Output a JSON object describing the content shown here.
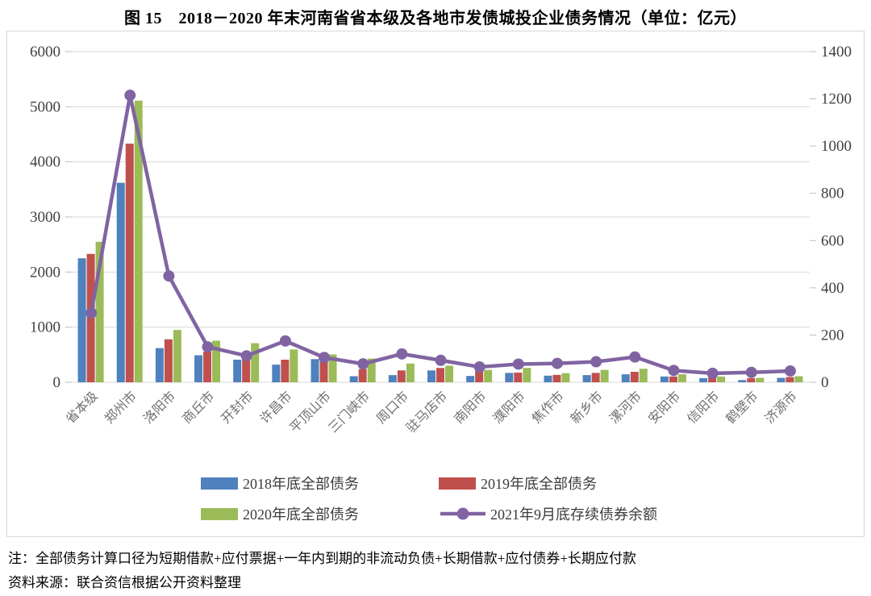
{
  "title": "图 15　2018－2020 年末河南省省本级及各地市发债城投企业债务情况（单位：亿元）",
  "notes": {
    "note": "注：全部债务计算口径为短期借款+应付票据+一年内到期的非流动负债+长期借款+应付债券+长期应付款",
    "source": "资料来源：联合资信根据公开资料整理"
  },
  "colors": {
    "bar_2018": "#4E81BD",
    "bar_2019": "#C0504D",
    "bar_2020": "#9BBB59",
    "line_2021": "#8064A2",
    "gridline": "#D9D9D9",
    "tick_mark": "#BFBFBF",
    "axis_text": "#404040",
    "category_text": "#707070"
  },
  "chart_data": {
    "type": "bar",
    "subtype": "grouped bars with overlay line on secondary axis",
    "categories": [
      "省本级",
      "郑州市",
      "洛阳市",
      "商丘市",
      "开封市",
      "许昌市",
      "平顶山市",
      "三门峡市",
      "周口市",
      "驻马店市",
      "南阳市",
      "濮阳市",
      "焦作市",
      "新乡市",
      "漯河市",
      "安阳市",
      "信阳市",
      "鹤壁市",
      "济源市"
    ],
    "series": [
      {
        "name": "2018年底全部债务",
        "type": "bar",
        "axis": "left",
        "values": [
          2250,
          3620,
          620,
          490,
          410,
          320,
          420,
          110,
          130,
          215,
          115,
          170,
          120,
          130,
          145,
          105,
          75,
          40,
          80
        ]
      },
      {
        "name": "2019年底全部债务",
        "type": "bar",
        "axis": "left",
        "values": [
          2330,
          4330,
          780,
          555,
          430,
          410,
          395,
          240,
          215,
          260,
          210,
          175,
          135,
          170,
          190,
          105,
          95,
          75,
          95
        ]
      },
      {
        "name": "2020年底全部债务",
        "type": "bar",
        "axis": "left",
        "values": [
          2550,
          5110,
          950,
          755,
          710,
          595,
          505,
          430,
          340,
          300,
          225,
          260,
          165,
          225,
          245,
          145,
          105,
          80,
          110
        ]
      },
      {
        "name": "2021年9月底存续债券余额",
        "type": "line",
        "axis": "right",
        "values": [
          293,
          1215,
          450,
          150,
          112,
          175,
          105,
          78,
          120,
          93,
          65,
          77,
          80,
          87,
          107,
          50,
          38,
          42,
          48
        ]
      }
    ],
    "left_axis": {
      "min": 0,
      "max": 6000,
      "ticks": [
        0,
        1000,
        2000,
        3000,
        4000,
        5000,
        6000
      ]
    },
    "right_axis": {
      "min": 0,
      "max": 1400,
      "ticks": [
        0,
        200,
        400,
        600,
        800,
        1000,
        1200,
        1400
      ]
    },
    "grid": true,
    "legend_position": "bottom"
  }
}
